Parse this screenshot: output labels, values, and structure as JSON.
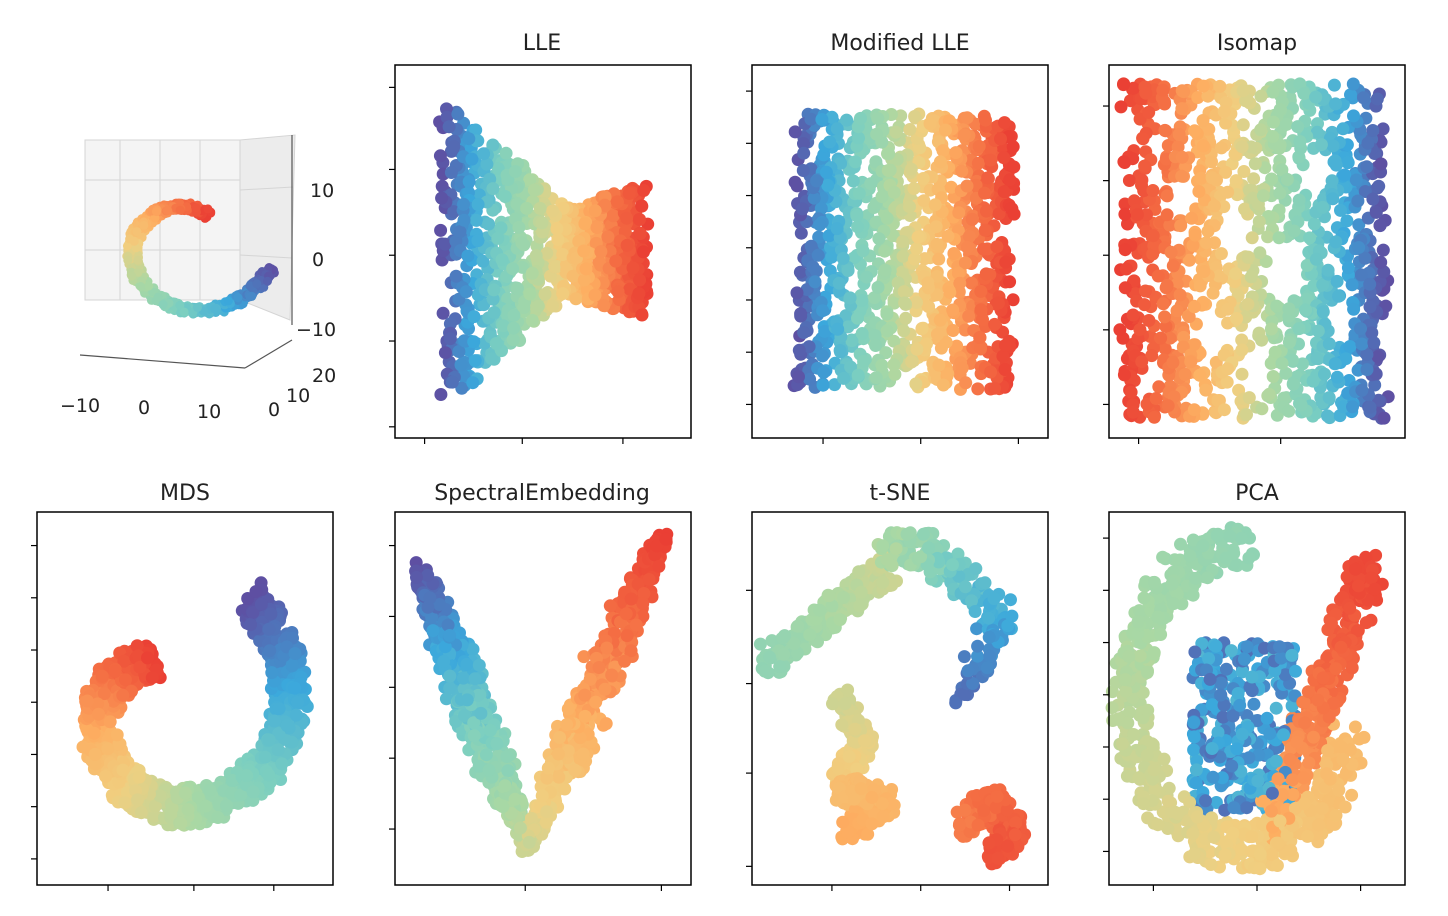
{
  "figure": {
    "description": "Manifold learning comparison on an S-curve / swiss-roll dataset, points colored with a Spectral-style colormap"
  },
  "chart_data": [
    {
      "type": "scatter3d",
      "title": "",
      "x_ticks": [
        "−10",
        "0",
        "10"
      ],
      "y_ticks": [
        "0",
        "10",
        "20"
      ],
      "z_ticks": [
        "10",
        "0",
        "−10"
      ]
    },
    {
      "type": "scatter",
      "title": "LLE",
      "shape": "butterfly"
    },
    {
      "type": "scatter",
      "title": "Modified LLE",
      "shape": "rectangle"
    },
    {
      "type": "scatter",
      "title": "Isomap",
      "shape": "rectangle-holes"
    },
    {
      "type": "scatter",
      "title": "MDS",
      "shape": "spiral"
    },
    {
      "type": "scatter",
      "title": "SpectralEmbedding",
      "shape": "v"
    },
    {
      "type": "scatter",
      "title": "t-SNE",
      "shape": "clusters"
    },
    {
      "type": "scatter",
      "title": "PCA",
      "shape": "overlapped-roll"
    }
  ],
  "colormap": [
    "#5e4fa2",
    "#3288bd",
    "#66c2a5",
    "#abdda4",
    "#e6f598",
    "#fee08b",
    "#fdae61",
    "#f46d43",
    "#d53e4f"
  ],
  "point_colormap": [
    "#5e4fa2",
    "#3ba8dc",
    "#7ccfc0",
    "#a9d8a4",
    "#f0cf80",
    "#fdae61",
    "#f46d43",
    "#ea3f34"
  ]
}
